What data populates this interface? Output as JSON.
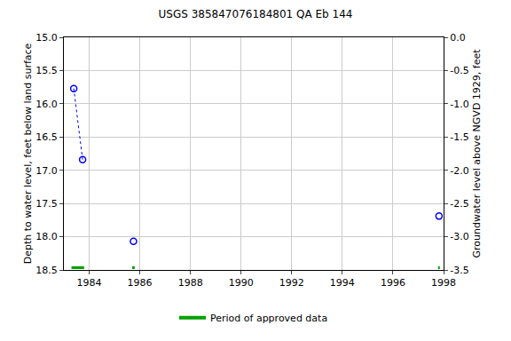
{
  "chart_data": {
    "type": "scatter",
    "title": "USGS 385847076184801 QA Eb 144",
    "x_label": "",
    "y_label": "Depth to water level, feet below land surface",
    "y2_label": "Groundwater level above NGVD 1929, feet",
    "x": [
      1983.39,
      1983.74,
      null,
      1985.75,
      null,
      1997.82
    ],
    "series": [
      {
        "name": "Depth to water level",
        "color": "#0000ff",
        "marker": "circle-open",
        "line_style": "dot",
        "values": [
          15.77,
          16.84,
          null,
          18.07,
          null,
          17.69
        ]
      }
    ],
    "approved_periods": {
      "name": "Period of approved data",
      "color": "#00a000",
      "ranges": [
        [
          1983.3,
          1983.8
        ],
        [
          1985.7,
          1985.8
        ],
        [
          1997.78,
          1997.85
        ]
      ]
    },
    "xlim": [
      1983,
      1998
    ],
    "xticks": [
      1984,
      1986,
      1988,
      1990,
      1992,
      1994,
      1996,
      1998
    ],
    "ylim": [
      18.5,
      15.0
    ],
    "yticks": [
      {
        "value": 15.0,
        "label": "15.0"
      },
      {
        "value": 15.5,
        "label": "15.5"
      },
      {
        "value": 16.0,
        "label": "16.0"
      },
      {
        "value": 16.5,
        "label": "16.5"
      },
      {
        "value": 17.0,
        "label": "17.0"
      },
      {
        "value": 17.5,
        "label": "17.5"
      },
      {
        "value": 18.0,
        "label": "18.0"
      },
      {
        "value": 18.5,
        "label": "18.5"
      }
    ],
    "y2lim": [
      -3.5,
      0.0
    ],
    "y2ticks": [
      {
        "value": 0.0,
        "label": "0.0"
      },
      {
        "value": -0.5,
        "label": "-0.5"
      },
      {
        "value": -1.0,
        "label": "-1.0"
      },
      {
        "value": -1.5,
        "label": "-1.5"
      },
      {
        "value": -2.0,
        "label": "-2.0"
      },
      {
        "value": -2.5,
        "label": "-2.5"
      },
      {
        "value": -3.0,
        "label": "-3.0"
      },
      {
        "value": -3.5,
        "label": "-3.5"
      }
    ],
    "grid": true,
    "legend": "bottom"
  }
}
